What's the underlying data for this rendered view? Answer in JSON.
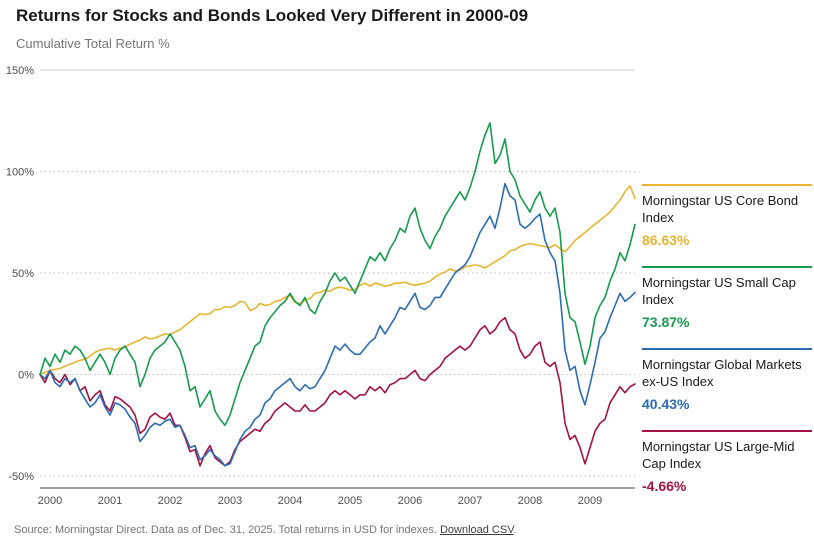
{
  "title": "Returns for Stocks and Bonds Looked Very Different in 2000-09",
  "subtitle": "Cumulative Total Return %",
  "footer": {
    "source_text": "Source: Morningstar Direct. Data as of Dec. 31, 2025. Total returns in USD for indexes. ",
    "link_text": "Download CSV",
    "after_link": "."
  },
  "chart_data": {
    "type": "line",
    "title": "Returns for Stocks and Bonds Looked Very Different in 2000-09",
    "ylabel": "Cumulative Total Return %",
    "xlabel": "",
    "grid": "dotted horizontal gridlines",
    "legend_position": "right",
    "ylim": [
      -50,
      150
    ],
    "y_ticks": [
      -50,
      0,
      50,
      100,
      150
    ],
    "y_tick_labels": [
      "-50%",
      "0%",
      "50%",
      "100%",
      "150%"
    ],
    "x_tick_labels": [
      "2000",
      "2001",
      "2002",
      "2003",
      "2004",
      "2005",
      "2006",
      "2007",
      "2008",
      "2009"
    ],
    "x_unit": "monthly, Jan 2000 - Dec 2009",
    "series": [
      {
        "id": "core-bond",
        "name": "Morningstar US Core Bond Index",
        "final": 86.63,
        "final_label": "86.63%",
        "color": "#E9B52F",
        "values": [
          0,
          1,
          2,
          2.5,
          3,
          4,
          5,
          6,
          7,
          7.5,
          9,
          11,
          12,
          12.5,
          13,
          12,
          13,
          13.5,
          15,
          16,
          17,
          18.5,
          17.5,
          18,
          19,
          20,
          19.5,
          21,
          22,
          24,
          26,
          28,
          30,
          29.5,
          30,
          32,
          32,
          33.5,
          33,
          34,
          36,
          35.5,
          31.5,
          32.5,
          35,
          34,
          34.5,
          36,
          36.5,
          38,
          39,
          35.5,
          35,
          36.5,
          37.5,
          40,
          40.5,
          41.5,
          41,
          42.5,
          43,
          42.5,
          41.5,
          42,
          44,
          45,
          43.5,
          45,
          44.5,
          43.5,
          44,
          45,
          45,
          45.5,
          44.5,
          44,
          44.5,
          45,
          46,
          48,
          49.5,
          50.5,
          52,
          51,
          51.5,
          53,
          53.5,
          54,
          53.5,
          52.5,
          54,
          55.5,
          57,
          58.5,
          61,
          61.5,
          63,
          64,
          64.5,
          64,
          63.5,
          63,
          62.5,
          64,
          62,
          60.5,
          63,
          66,
          68,
          70,
          72,
          74,
          76,
          78,
          80,
          83,
          86,
          90,
          93,
          86.63
        ]
      },
      {
        "id": "small-cap",
        "name": "Morningstar US Small Cap Index",
        "final": 73.87,
        "final_label": "73.87%",
        "color": "#169B4E",
        "values": [
          0,
          8,
          4,
          10,
          6,
          12,
          10,
          14,
          12,
          8,
          2,
          6,
          10,
          6,
          0,
          8,
          12,
          14,
          10,
          6,
          -6,
          0,
          8,
          12,
          14,
          16,
          20,
          16,
          12,
          4,
          -8,
          -6,
          -16,
          -12,
          -8,
          -18,
          -22,
          -25,
          -20,
          -12,
          -4,
          2,
          8,
          14,
          16,
          24,
          28,
          31,
          34,
          36,
          40,
          36,
          34,
          38,
          32,
          30,
          36,
          40,
          46,
          50,
          46,
          48,
          44,
          40,
          46,
          52,
          58,
          56,
          60,
          56,
          62,
          66,
          72,
          70,
          78,
          82,
          72,
          66,
          62,
          68,
          72,
          78,
          82,
          86,
          90,
          86,
          92,
          100,
          110,
          118,
          124,
          104,
          108,
          116,
          100,
          96,
          88,
          84,
          80,
          86,
          90,
          82,
          78,
          82,
          70,
          40,
          28,
          26,
          16,
          5,
          14,
          28,
          34,
          38,
          46,
          52,
          60,
          56,
          64,
          73.87
        ]
      },
      {
        "id": "global-ex-us",
        "name": "Morningstar Global Markets ex-US Index",
        "final": 40.43,
        "final_label": "40.43%",
        "color": "#2C6CB5",
        "values": [
          0,
          -2,
          2,
          -4,
          -6,
          -2,
          -4,
          -2,
          -8,
          -12,
          -16,
          -14,
          -10,
          -16,
          -20,
          -14,
          -15,
          -17,
          -21,
          -24,
          -33,
          -30,
          -26,
          -24,
          -25,
          -23,
          -22,
          -26,
          -25,
          -30,
          -36,
          -35,
          -42,
          -40,
          -37,
          -40,
          -42,
          -45,
          -44,
          -38,
          -32,
          -28,
          -26,
          -22,
          -20,
          -14,
          -12,
          -8,
          -6,
          -4,
          -2,
          -6,
          -8,
          -5,
          -7,
          -6,
          -2,
          2,
          8,
          14,
          12,
          15,
          12,
          10,
          10,
          13,
          16,
          18,
          24,
          20,
          24,
          28,
          33,
          32,
          36,
          40,
          33,
          32,
          34,
          38,
          38,
          42,
          46,
          50,
          52,
          54,
          58,
          64,
          70,
          74,
          78,
          72,
          82,
          94,
          88,
          86,
          74,
          72,
          74,
          77,
          79,
          66,
          60,
          56,
          40,
          12,
          2,
          4,
          -8,
          -15,
          -5,
          6,
          18,
          21,
          28,
          34,
          40,
          36,
          38,
          40.43
        ]
      },
      {
        "id": "large-mid",
        "name": "Morningstar US Large-Mid Cap Index",
        "final": -4.66,
        "final_label": "-4.66%",
        "color": "#A51140",
        "values": [
          0,
          -4,
          2,
          -2,
          -4,
          0,
          -5,
          -2,
          -8,
          -6,
          -13,
          -10,
          -8,
          -15,
          -18,
          -11,
          -12,
          -14,
          -16,
          -20,
          -29,
          -27,
          -21,
          -19,
          -21,
          -22,
          -19,
          -25,
          -25,
          -31,
          -38,
          -37,
          -45,
          -39,
          -35,
          -41,
          -43,
          -45,
          -43,
          -37,
          -33,
          -31,
          -29,
          -27,
          -28,
          -24,
          -22,
          -18,
          -16,
          -14,
          -16,
          -18,
          -18,
          -15,
          -18,
          -18,
          -16,
          -14,
          -10,
          -8,
          -10,
          -8,
          -10,
          -12,
          -10,
          -10,
          -6,
          -8,
          -6,
          -9,
          -5,
          -4,
          -2,
          -2,
          0,
          2,
          -2,
          -3,
          0,
          2,
          4,
          8,
          10,
          12,
          14,
          12,
          14,
          18,
          22,
          24,
          20,
          22,
          26,
          28,
          22,
          20,
          12,
          8,
          10,
          14,
          16,
          6,
          4,
          6,
          -4,
          -24,
          -32,
          -30,
          -36,
          -44,
          -36,
          -28,
          -24,
          -22,
          -14,
          -10,
          -6,
          -9,
          -6,
          -4.66
        ]
      }
    ]
  }
}
